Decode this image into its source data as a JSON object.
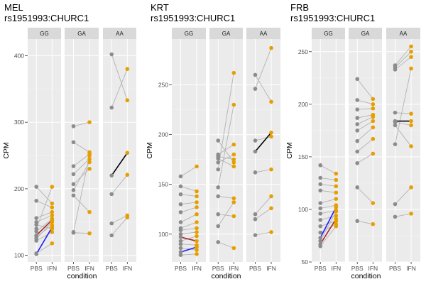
{
  "colors": {
    "panel_bg": "#ebebeb",
    "strip_bg": "#d9d9d9",
    "grid_major": "#ffffff",
    "pbs_point": "#8c8c8c",
    "ifn_point": "#e69f00",
    "pair_line": "#b3b3b3",
    "highlight_red": "#a52a2a",
    "highlight_blue": "#1a1aff",
    "highlight_black": "#000000"
  },
  "chart_data": [
    {
      "type": "scatter",
      "title_line1": "MEL",
      "title_line2": "rs1951993:CHURC1",
      "xlabel": "condition",
      "ylabel": "CPM",
      "x_categories": [
        "PBS",
        "IFN"
      ],
      "ylim": [
        90,
        425
      ],
      "yticks": [
        100,
        200,
        300,
        400
      ],
      "facets": [
        {
          "genotype": "GG",
          "pairs": [
            {
              "PBS": 203,
              "IFN": 178
            },
            {
              "PBS": 182,
              "IFN": 172
            },
            {
              "PBS": 156,
              "IFN": 165
            },
            {
              "PBS": 150,
              "IFN": 160
            },
            {
              "PBS": 146,
              "IFN": 140
            },
            {
              "PBS": 140,
              "IFN": 203
            },
            {
              "PBS": 136,
              "IFN": 155
            },
            {
              "PBS": 130,
              "IFN": 153,
              "highlight": "red"
            },
            {
              "PBS": 128,
              "IFN": 145
            },
            {
              "PBS": 125,
              "IFN": 150
            },
            {
              "PBS": 122,
              "IFN": 135
            },
            {
              "PBS": 103,
              "IFN": 118
            },
            {
              "PBS": 102,
              "IFN": 142,
              "highlight": "blue"
            }
          ]
        },
        {
          "genotype": "GA",
          "pairs": [
            {
              "PBS": 294,
              "IFN": 300
            },
            {
              "PBS": 270,
              "IFN": 255
            },
            {
              "PBS": 234,
              "IFN": 252
            },
            {
              "PBS": 222,
              "IFN": 245
            },
            {
              "PBS": 207,
              "IFN": 230
            },
            {
              "PBS": 198,
              "IFN": 240
            },
            {
              "PBS": 190,
              "IFN": 165
            },
            {
              "PBS": 135,
              "IFN": 250
            },
            {
              "PBS": 134,
              "IFN": 133
            }
          ]
        },
        {
          "genotype": "AA",
          "pairs": [
            {
              "PBS": 402,
              "IFN": 333
            },
            {
              "PBS": 322,
              "IFN": 380
            },
            {
              "PBS": 220,
              "IFN": 254,
              "highlight": "black"
            },
            {
              "PBS": 192,
              "IFN": 221
            },
            {
              "PBS": 148,
              "IFN": 160
            },
            {
              "PBS": 130,
              "IFN": 157
            }
          ]
        }
      ]
    },
    {
      "type": "scatter",
      "title_line1": "KRT",
      "title_line2": "rs1951993:CHURC1",
      "xlabel": "condition",
      "ylabel": "CPM",
      "x_categories": [
        "PBS",
        "IFN"
      ],
      "ylim": [
        72,
        296
      ],
      "yticks": [
        100,
        150,
        200,
        250
      ],
      "facets": [
        {
          "genotype": "GG",
          "pairs": [
            {
              "PBS": 158,
              "IFN": 168
            },
            {
              "PBS": 148,
              "IFN": 143
            },
            {
              "PBS": 140,
              "IFN": 138
            },
            {
              "PBS": 130,
              "IFN": 132
            },
            {
              "PBS": 122,
              "IFN": 127
            },
            {
              "PBS": 112,
              "IFN": 120
            },
            {
              "PBS": 106,
              "IFN": 112
            },
            {
              "PBS": 104,
              "IFN": 106
            },
            {
              "PBS": 100,
              "IFN": 102
            },
            {
              "PBS": 97,
              "IFN": 93,
              "highlight": "red"
            },
            {
              "PBS": 93,
              "IFN": 98
            },
            {
              "PBS": 90,
              "IFN": 89
            },
            {
              "PBS": 86,
              "IFN": 84
            },
            {
              "PBS": 82,
              "IFN": 87,
              "highlight": "blue"
            },
            {
              "PBS": 79,
              "IFN": 80
            }
          ]
        },
        {
          "genotype": "GA",
          "pairs": [
            {
              "PBS": 194,
              "IFN": 172
            },
            {
              "PBS": 180,
              "IFN": 190
            },
            {
              "PBS": 178,
              "IFN": 175
            },
            {
              "PBS": 176,
              "IFN": 168
            },
            {
              "PBS": 172,
              "IFN": 180
            },
            {
              "PBS": 165,
              "IFN": 262
            },
            {
              "PBS": 147,
              "IFN": 230
            },
            {
              "PBS": 138,
              "IFN": 136
            },
            {
              "PBS": 120,
              "IFN": 118
            },
            {
              "PBS": 108,
              "IFN": 132
            },
            {
              "PBS": 92,
              "IFN": 86
            }
          ]
        },
        {
          "genotype": "AA",
          "pairs": [
            {
              "PBS": 260,
              "IFN": 233
            },
            {
              "PBS": 246,
              "IFN": 287
            },
            {
              "PBS": 194,
              "IFN": 198
            },
            {
              "PBS": 183,
              "IFN": 202,
              "highlight": "black"
            },
            {
              "PBS": 162,
              "IFN": 165
            },
            {
              "PBS": 120,
              "IFN": 138
            },
            {
              "PBS": 115,
              "IFN": 126
            },
            {
              "PBS": 99,
              "IFN": 102
            }
          ]
        }
      ]
    },
    {
      "type": "scatter",
      "title_line1": "FRB",
      "title_line2": "rs1951993:CHURC1",
      "xlabel": "condition",
      "ylabel": "CPM",
      "x_categories": [
        "PBS",
        "IFN"
      ],
      "ylim": [
        50,
        262
      ],
      "yticks": [
        50,
        100,
        150,
        200,
        250
      ],
      "facets": [
        {
          "genotype": "GG",
          "pairs": [
            {
              "PBS": 142,
              "IFN": 134
            },
            {
              "PBS": 130,
              "IFN": 128
            },
            {
              "PBS": 124,
              "IFN": 122
            },
            {
              "PBS": 118,
              "IFN": 116
            },
            {
              "PBS": 106,
              "IFN": 110
            },
            {
              "PBS": 101,
              "IFN": 104
            },
            {
              "PBS": 96,
              "IFN": 99
            },
            {
              "PBS": 90,
              "IFN": 94
            },
            {
              "PBS": 84,
              "IFN": 89
            },
            {
              "PBS": 78,
              "IFN": 86
            },
            {
              "PBS": 73,
              "IFN": 102,
              "highlight": "blue"
            },
            {
              "PBS": 70,
              "IFN": 98
            },
            {
              "PBS": 67,
              "IFN": 91,
              "highlight": "red"
            },
            {
              "PBS": 65,
              "IFN": 84
            }
          ]
        },
        {
          "genotype": "GA",
          "pairs": [
            {
              "PBS": 224,
              "IFN": 205
            },
            {
              "PBS": 204,
              "IFN": 200
            },
            {
              "PBS": 195,
              "IFN": 196
            },
            {
              "PBS": 187,
              "IFN": 190
            },
            {
              "PBS": 181,
              "IFN": 188
            },
            {
              "PBS": 175,
              "IFN": 184
            },
            {
              "PBS": 165,
              "IFN": 178
            },
            {
              "PBS": 155,
              "IFN": 167
            },
            {
              "PBS": 144,
              "IFN": 153
            },
            {
              "PBS": 121,
              "IFN": 106
            },
            {
              "PBS": 89,
              "IFN": 86
            }
          ]
        },
        {
          "genotype": "AA",
          "pairs": [
            {
              "PBS": 237,
              "IFN": 255
            },
            {
              "PBS": 235,
              "IFN": 250
            },
            {
              "PBS": 233,
              "IFN": 245
            },
            {
              "PBS": 192,
              "IFN": 191
            },
            {
              "PBS": 184,
              "IFN": 184,
              "highlight": "black"
            },
            {
              "PBS": 183,
              "IFN": 180
            },
            {
              "PBS": 180,
              "IFN": 160
            },
            {
              "PBS": 162,
              "IFN": 234
            },
            {
              "PBS": 105,
              "IFN": 121
            },
            {
              "PBS": 93,
              "IFN": 96
            }
          ]
        }
      ]
    }
  ]
}
